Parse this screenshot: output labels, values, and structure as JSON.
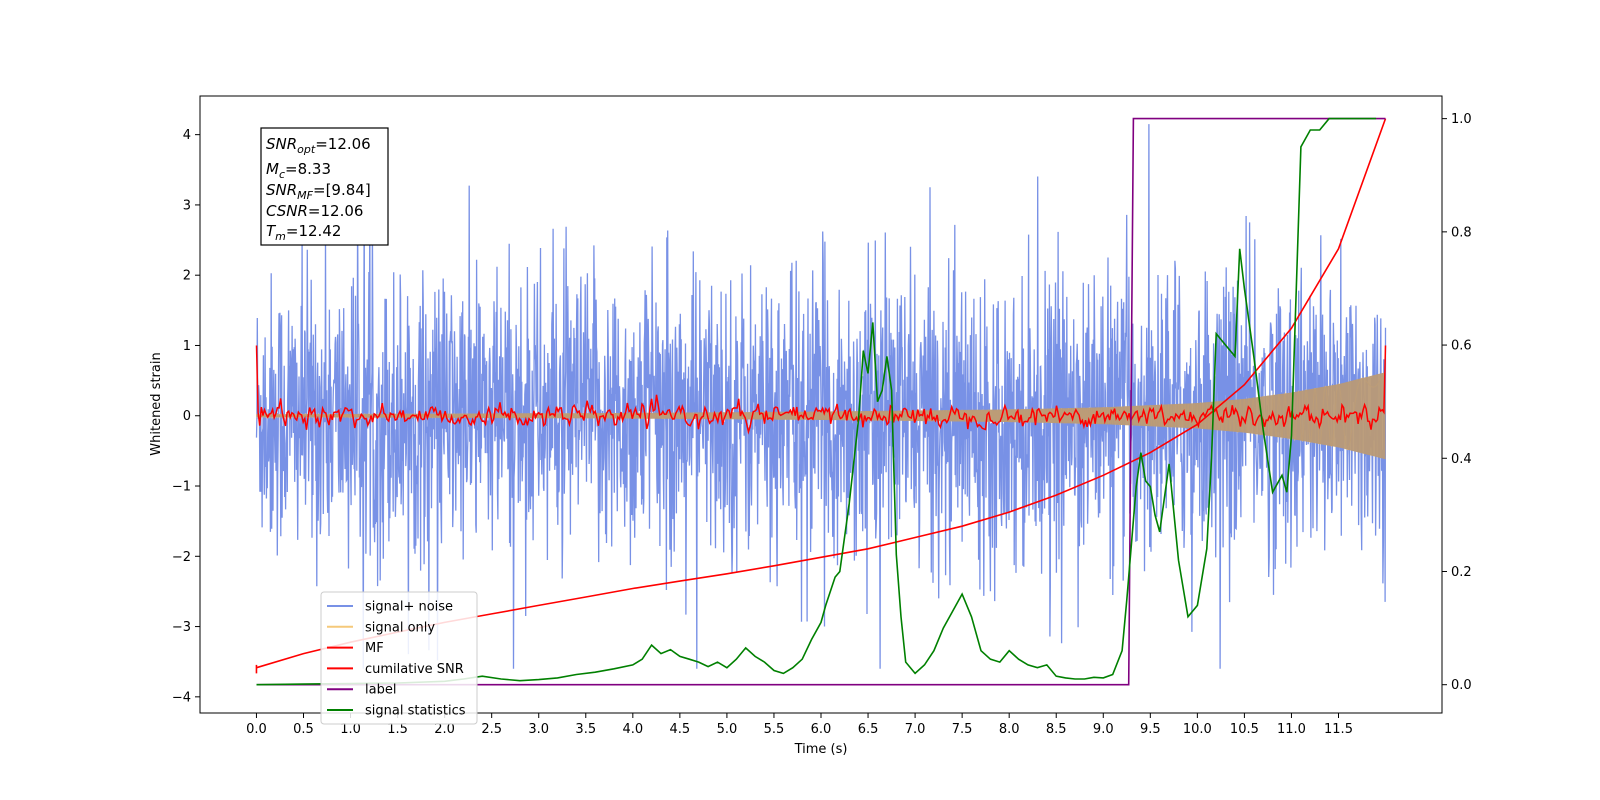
{
  "chart_data": {
    "type": "line",
    "xlabel": "Time (s)",
    "ylabel": "Whitened strain",
    "xlim": [
      -0.6,
      12.6
    ],
    "ylim": [
      -4.23,
      4.55
    ],
    "ylim_right": [
      -0.05,
      1.04
    ],
    "x_ticks": [
      "0.0",
      "0.5",
      "1.0",
      "1.5",
      "2.0",
      "2.5",
      "3.0",
      "3.5",
      "4.0",
      "4.5",
      "5.0",
      "5.5",
      "6.0",
      "6.5",
      "7.0",
      "7.5",
      "8.0",
      "8.5",
      "9.0",
      "9.5",
      "10.0",
      "10.5",
      "11.0",
      "11.5"
    ],
    "y_ticks": [
      "−4",
      "−3",
      "−2",
      "−1",
      "0",
      "1",
      "2",
      "3",
      "4"
    ],
    "y_ticks_right": [
      "0.0",
      "0.2",
      "0.4",
      "0.6",
      "0.8",
      "1.0"
    ],
    "legend_position": "lower-left",
    "info_box": {
      "line1": {
        "sym": "SNR",
        "sub": "opt",
        "val": "=12.06"
      },
      "line2": {
        "sym": "M",
        "sub": "c",
        "val": "=8.33"
      },
      "line3": {
        "sym": "SNR",
        "sub": "MF",
        "val": "=[9.84]"
      },
      "line4": {
        "sym": "CSNR",
        "sub": "",
        "val": "=12.06"
      },
      "line5": {
        "sym": "T",
        "sub": "m",
        "val": "=12.42"
      }
    },
    "series": [
      {
        "name": "signal+ noise",
        "color": "#7891e6",
        "axis": "left",
        "description_values": "noise envelope approx ±2.2 with spikes to ±3.6"
      },
      {
        "name": "signal only",
        "color": "#f5c97a",
        "axis": "left",
        "envelope_x": [
          0,
          2,
          4,
          6,
          8,
          9,
          10,
          10.5,
          11,
          11.5,
          12
        ],
        "envelope_amp": [
          0.02,
          0.03,
          0.04,
          0.06,
          0.09,
          0.12,
          0.18,
          0.24,
          0.33,
          0.45,
          0.62
        ]
      },
      {
        "name": "MF",
        "color": "#ff0000",
        "axis": "left",
        "description_values": "approx 0 ± 0.15 noisy, spikes to 1.0 at both ends"
      },
      {
        "name": "cumilative SNR",
        "color": "#ff0000",
        "axis": "right",
        "x": [
          0,
          0.5,
          1,
          1.5,
          2,
          2.5,
          3,
          3.5,
          4,
          4.5,
          5,
          5.5,
          6,
          6.5,
          7,
          7.5,
          8,
          8.5,
          9,
          9.5,
          10,
          10.5,
          11,
          11.5,
          12
        ],
        "y": [
          0.03,
          0.055,
          0.075,
          0.093,
          0.11,
          0.125,
          0.14,
          0.155,
          0.17,
          0.183,
          0.196,
          0.21,
          0.225,
          0.24,
          0.26,
          0.28,
          0.305,
          0.335,
          0.37,
          0.41,
          0.46,
          0.53,
          0.63,
          0.77,
          1.0
        ]
      },
      {
        "name": "label",
        "color": "#800080",
        "axis": "right",
        "x": [
          0,
          9.27,
          9.32,
          12
        ],
        "y": [
          0.0,
          0.0,
          1.0,
          1.0
        ]
      },
      {
        "name": "signal statistics",
        "color": "#008000",
        "axis": "right",
        "x": [
          0,
          0.5,
          1,
          1.5,
          2,
          2.2,
          2.4,
          2.6,
          2.8,
          3,
          3.2,
          3.4,
          3.6,
          3.8,
          4,
          4.1,
          4.2,
          4.3,
          4.4,
          4.5,
          4.6,
          4.7,
          4.8,
          4.9,
          5,
          5.1,
          5.2,
          5.3,
          5.4,
          5.5,
          5.6,
          5.7,
          5.8,
          5.9,
          6,
          6.05,
          6.15,
          6.2,
          6.3,
          6.4,
          6.45,
          6.5,
          6.55,
          6.6,
          6.65,
          6.7,
          6.75,
          6.8,
          6.85,
          6.9,
          7,
          7.1,
          7.2,
          7.3,
          7.4,
          7.5,
          7.6,
          7.7,
          7.8,
          7.9,
          8,
          8.1,
          8.2,
          8.3,
          8.4,
          8.5,
          8.6,
          8.7,
          8.8,
          8.9,
          9,
          9.1,
          9.2,
          9.25,
          9.3,
          9.35,
          9.4,
          9.45,
          9.5,
          9.55,
          9.6,
          9.7,
          9.8,
          9.9,
          10,
          10.1,
          10.15,
          10.2,
          10.3,
          10.4,
          10.45,
          10.5,
          10.6,
          10.7,
          10.8,
          10.9,
          10.95,
          11,
          11.1,
          11.2,
          11.3,
          11.4,
          11.5,
          11.6,
          11.7,
          11.8,
          11.9
        ],
        "y": [
          0.0,
          0.001,
          0.002,
          0.003,
          0.006,
          0.01,
          0.015,
          0.01,
          0.007,
          0.009,
          0.012,
          0.018,
          0.022,
          0.028,
          0.035,
          0.045,
          0.07,
          0.055,
          0.062,
          0.05,
          0.045,
          0.04,
          0.032,
          0.04,
          0.03,
          0.045,
          0.065,
          0.05,
          0.04,
          0.025,
          0.02,
          0.03,
          0.045,
          0.08,
          0.11,
          0.14,
          0.19,
          0.2,
          0.32,
          0.47,
          0.59,
          0.55,
          0.64,
          0.5,
          0.52,
          0.58,
          0.52,
          0.23,
          0.12,
          0.04,
          0.02,
          0.035,
          0.06,
          0.1,
          0.13,
          0.16,
          0.12,
          0.06,
          0.045,
          0.04,
          0.06,
          0.045,
          0.035,
          0.03,
          0.035,
          0.015,
          0.012,
          0.01,
          0.01,
          0.013,
          0.012,
          0.018,
          0.06,
          0.15,
          0.25,
          0.35,
          0.41,
          0.36,
          0.35,
          0.3,
          0.27,
          0.39,
          0.22,
          0.12,
          0.14,
          0.24,
          0.4,
          0.62,
          0.6,
          0.58,
          0.77,
          0.7,
          0.58,
          0.45,
          0.34,
          0.37,
          0.34,
          0.44,
          0.95,
          0.98,
          0.98,
          1.0,
          1.0,
          1.0,
          1.0,
          1.0,
          1.0
        ]
      }
    ]
  }
}
